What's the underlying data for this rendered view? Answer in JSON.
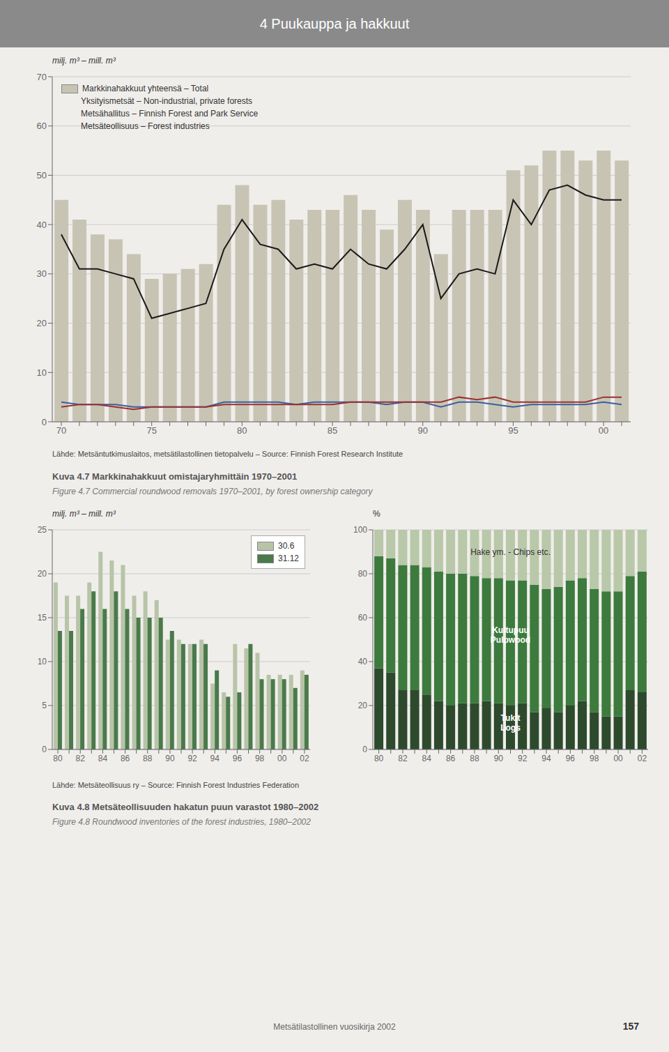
{
  "title": "4 Puukauppa ja hakkuut",
  "annotations": [
    "Metsätilastollinen vuosikirja 2002",
    "157"
  ],
  "chart_data": [
    {
      "type": "bar",
      "title": "Kuva 4.7    Markkinahakkuut omistajaryhmittäin 1970–2001",
      "subtitle": "Figure 4.7   Commercial roundwood removals 1970–2001, by forest ownership category",
      "y_label": "milj. m³ – mill. m³",
      "annotations": [
        "Lähde: Metsäntutkimuslaitos, metsätilastollinen tietopalvelu – Source: Finnish Forest Research Institute"
      ],
      "categories": [
        "70",
        null,
        null,
        null,
        null,
        "75",
        null,
        null,
        null,
        null,
        "80",
        null,
        null,
        null,
        null,
        "85",
        null,
        null,
        null,
        null,
        "90",
        null,
        null,
        null,
        null,
        "95",
        null,
        null,
        null,
        null,
        "00",
        null
      ],
      "series": [
        {
          "name": "Markkinahakkuut yhteensä – Total",
          "type": "bar",
          "color": "#c8c4b4",
          "values": [
            45,
            41,
            38,
            37,
            34,
            29,
            30,
            31,
            32,
            44,
            48,
            44,
            45,
            41,
            43,
            43,
            46,
            43,
            39,
            45,
            43,
            34,
            43,
            43,
            43,
            51,
            52,
            55,
            55,
            53,
            55,
            53
          ]
        },
        {
          "name": "Yksityismetsät – Non-industrial, private forests",
          "type": "line",
          "color": "#1a1a1a",
          "values": [
            38,
            31,
            31,
            30,
            29,
            21,
            22,
            23,
            24,
            35,
            41,
            36,
            35,
            31,
            32,
            31,
            35,
            32,
            31,
            35,
            40,
            25,
            30,
            31,
            30,
            45,
            40,
            47,
            48,
            46,
            45,
            45
          ]
        },
        {
          "name": "Metsähallitus – Finnish Forest and Park Service",
          "type": "line",
          "color": "#3b5fa0",
          "values": [
            4.0,
            3.5,
            3.5,
            3.5,
            3.0,
            3.0,
            3.0,
            3.0,
            3.0,
            4.0,
            4.0,
            4.0,
            4.0,
            3.5,
            4.0,
            4.0,
            4.0,
            4.0,
            3.5,
            4.0,
            4.0,
            3.0,
            4.0,
            4.0,
            3.5,
            3.0,
            3.5,
            3.5,
            3.5,
            3.5,
            4.0,
            3.5
          ]
        },
        {
          "name": "Metsäteollisuus – Forest industries",
          "type": "line",
          "color": "#9c3030",
          "values": [
            3.0,
            3.5,
            3.5,
            3.0,
            2.5,
            3.0,
            3.0,
            3.0,
            3.0,
            3.5,
            3.5,
            3.5,
            3.5,
            3.5,
            3.5,
            3.5,
            4.0,
            4.0,
            4.0,
            4.0,
            4.0,
            4.0,
            5.0,
            4.5,
            5.0,
            4.0,
            4.0,
            4.0,
            4.0,
            4.0,
            5.0,
            5.0
          ]
        }
      ],
      "ylim": [
        0,
        70
      ],
      "yticks": [
        0,
        10,
        20,
        30,
        40,
        50,
        60,
        70
      ],
      "grid": true,
      "legend": "upper left"
    },
    {
      "type": "bar",
      "title": "Kuva 4.8    Metsäteollisuuden hakatun puun varastot 1980–2002",
      "subtitle": "Figure 4.8   Roundwood inventories of the forest industries, 1980–2002",
      "y_label": "milj. m³ – mill. m³",
      "annotations": [
        "Lähde: Metsäteollisuus ry – Source: Finnish Forest Industries Federation"
      ],
      "categories": [
        "80",
        null,
        "82",
        null,
        "84",
        null,
        "86",
        null,
        "88",
        null,
        "90",
        null,
        "92",
        null,
        "94",
        null,
        "96",
        null,
        "98",
        null,
        "00",
        null,
        "02"
      ],
      "series": [
        {
          "name": "30.6",
          "color": "#b8c4a8",
          "values": [
            19.0,
            17.5,
            17.5,
            19.0,
            22.5,
            21.5,
            21.0,
            17.5,
            18.0,
            17.0,
            12.5,
            12.5,
            12.0,
            12.5,
            7.5,
            6.5,
            12.0,
            11.5,
            11.0,
            8.5,
            8.5,
            8.5,
            9.0
          ]
        },
        {
          "name": "31.12",
          "color": "#4a7a4a",
          "values": [
            13.5,
            13.5,
            16.0,
            18.0,
            16.0,
            18.0,
            16.0,
            15.0,
            15.0,
            15.0,
            13.5,
            12.0,
            12.0,
            12.0,
            9.0,
            6.0,
            6.5,
            12.0,
            8.0,
            8.0,
            8.0,
            7.0,
            8.5
          ]
        }
      ],
      "ylim": [
        0,
        25
      ],
      "yticks": [
        0,
        5,
        10,
        15,
        20,
        25
      ],
      "grid": true,
      "legend": "upper right"
    },
    {
      "type": "bar",
      "stacked": true,
      "y_label": "%",
      "categories": [
        "80",
        null,
        "82",
        null,
        "84",
        null,
        "86",
        null,
        "88",
        null,
        "90",
        null,
        "92",
        null,
        "94",
        null,
        "96",
        null,
        "98",
        null,
        "00",
        null,
        "02"
      ],
      "series": [
        {
          "name": "Tukit\nLogs",
          "color": "#2d4a2d",
          "values": [
            37,
            35,
            27,
            27,
            25,
            22,
            20,
            21,
            21,
            22,
            21,
            20,
            21,
            17,
            19,
            17,
            20,
            22,
            17,
            15,
            15,
            27,
            26
          ]
        },
        {
          "name": "Kuitupuu\nPulpwood",
          "color": "#3d7a3d",
          "values": [
            51,
            52,
            57,
            57,
            58,
            59,
            60,
            59,
            58,
            56,
            57,
            57,
            56,
            58,
            54,
            57,
            57,
            56,
            56,
            57,
            57,
            52,
            55
          ]
        },
        {
          "name": "Hake ym. - Chips etc.",
          "color": "#b8c8a8",
          "values": [
            12,
            13,
            16,
            16,
            17,
            19,
            20,
            20,
            21,
            22,
            22,
            23,
            23,
            25,
            27,
            26,
            23,
            22,
            27,
            28,
            28,
            21,
            19
          ]
        }
      ],
      "ylim": [
        0,
        100
      ],
      "yticks": [
        0,
        20,
        40,
        60,
        80,
        100
      ],
      "grid": true
    }
  ]
}
